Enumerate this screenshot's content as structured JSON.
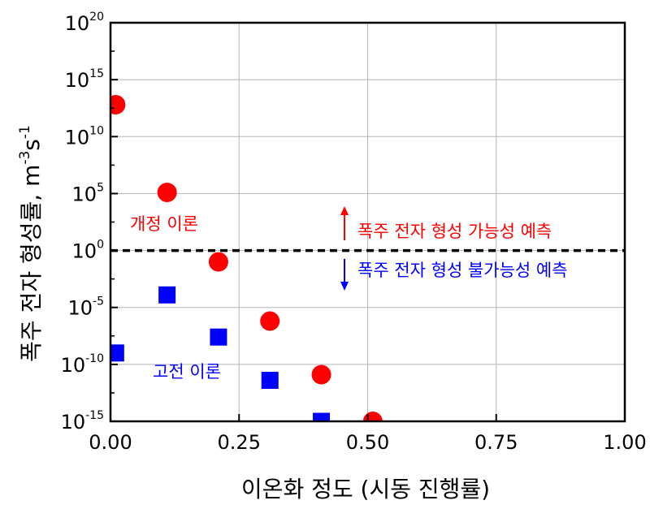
{
  "chart_data": {
    "type": "scatter",
    "title": "",
    "xlabel": "이온화 정도 (시동 진행률)",
    "ylabel": {
      "main": "폭주 전자 형성률, m",
      "exp1": "-3",
      "mid": "s",
      "exp2": "-1"
    },
    "xlim": [
      0,
      1
    ],
    "ylim_log10": [
      -15,
      20
    ],
    "y_scale": "log",
    "grid": true,
    "x_ticks": [
      {
        "value": 0,
        "label": "0.00"
      },
      {
        "value": 0.25,
        "label": "0.25"
      },
      {
        "value": 0.5,
        "label": "0.50"
      },
      {
        "value": 0.75,
        "label": "0.75"
      },
      {
        "value": 1,
        "label": "1.00"
      }
    ],
    "y_ticks": [
      {
        "exp": 20,
        "base": "10",
        "sup": "20"
      },
      {
        "exp": 15,
        "base": "10",
        "sup": "15"
      },
      {
        "exp": 10,
        "base": "10",
        "sup": "10"
      },
      {
        "exp": 5,
        "base": "10",
        "sup": "5"
      },
      {
        "exp": 0,
        "base": "10",
        "sup": "0"
      },
      {
        "exp": -5,
        "base": "10",
        "sup": "-5"
      },
      {
        "exp": -10,
        "base": "10",
        "sup": "-10"
      },
      {
        "exp": -15,
        "base": "10",
        "sup": "-15"
      }
    ],
    "series": [
      {
        "name": "개정 이론",
        "marker": "circle",
        "color": "#ff0000",
        "points": [
          {
            "x": 0.01,
            "y_log10": 12.8
          },
          {
            "x": 0.11,
            "y_log10": 5.1
          },
          {
            "x": 0.21,
            "y_log10": -1.0
          },
          {
            "x": 0.31,
            "y_log10": -6.2
          },
          {
            "x": 0.41,
            "y_log10": -10.9
          },
          {
            "x": 0.51,
            "y_log10": -15.0
          }
        ]
      },
      {
        "name": "고전 이론",
        "marker": "square",
        "color": "#0000ff",
        "points": [
          {
            "x": 0.01,
            "y_log10": -9.0
          },
          {
            "x": 0.11,
            "y_log10": -3.9
          },
          {
            "x": 0.21,
            "y_log10": -7.6
          },
          {
            "x": 0.31,
            "y_log10": -11.4
          },
          {
            "x": 0.41,
            "y_log10": -15.0
          }
        ]
      }
    ],
    "threshold": {
      "y_log10": 0
    },
    "annotations": {
      "above": {
        "text": "폭주 전자 형성 가능성 예측",
        "color": "#ff0000"
      },
      "below": {
        "text": "폭주 전자 형성 불가능성 예측",
        "color": "#0000ff"
      }
    }
  }
}
